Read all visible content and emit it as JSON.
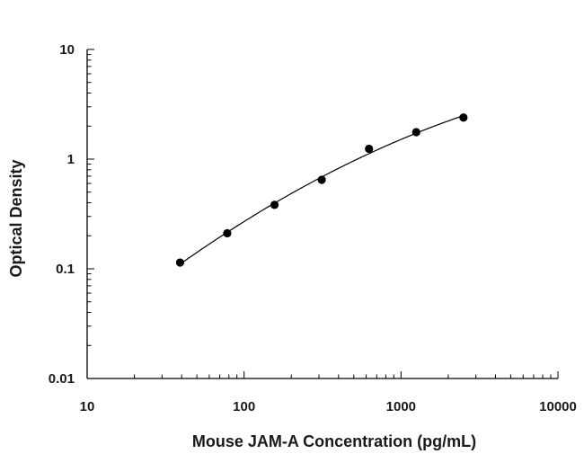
{
  "chart_data": {
    "type": "scatter",
    "title": "",
    "xlabel": "Mouse JAM-A Concentration (pg/mL)",
    "ylabel": "Optical Density",
    "x_scale": "log",
    "y_scale": "log",
    "xlim": [
      10,
      10000
    ],
    "ylim": [
      0.01,
      10
    ],
    "x_ticks": [
      10,
      100,
      1000,
      10000
    ],
    "y_ticks": [
      0.01,
      0.1,
      1,
      10
    ],
    "x_tick_labels": [
      "10",
      "100",
      "1000",
      "10000"
    ],
    "y_tick_labels": [
      "0.01",
      "0.1",
      "1",
      "10"
    ],
    "grid": false,
    "legend": "none",
    "fit_curve": true,
    "series": [
      {
        "x": [
          39.1,
          78.1,
          156.3,
          312.5,
          625,
          1250,
          2500
        ],
        "y": [
          0.114,
          0.211,
          0.383,
          0.648,
          1.242,
          1.762,
          2.393
        ],
        "color": "#000000"
      }
    ]
  }
}
